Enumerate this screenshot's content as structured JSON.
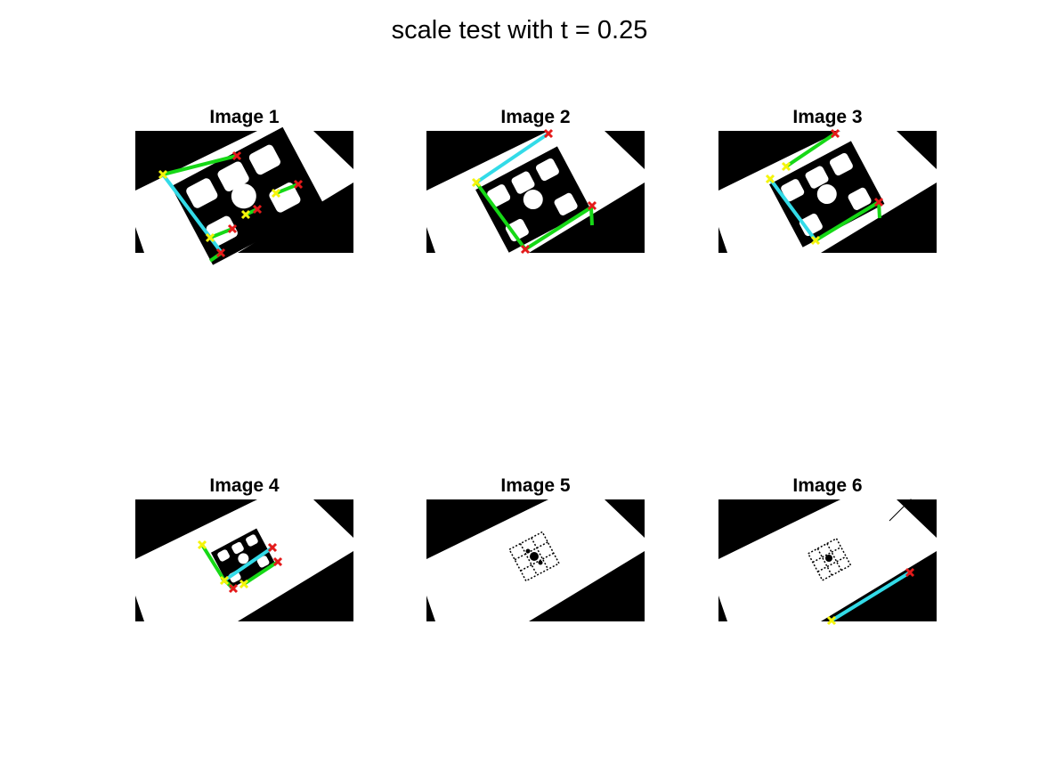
{
  "figure": {
    "title": "scale test with t = 0.25"
  },
  "colors": {
    "background": "#ffffff",
    "image_dark": "#000000",
    "image_light": "#ffffff",
    "line_green": "#16d816",
    "line_cyan": "#33dbe8",
    "marker_start": "#f4f40a",
    "marker_end": "#e41a1a"
  },
  "panels": [
    {
      "title": "Image 1"
    },
    {
      "title": "Image 2"
    },
    {
      "title": "Image 3"
    },
    {
      "title": "Image 4"
    },
    {
      "title": "Image 5"
    },
    {
      "title": "Image 6"
    }
  ]
}
